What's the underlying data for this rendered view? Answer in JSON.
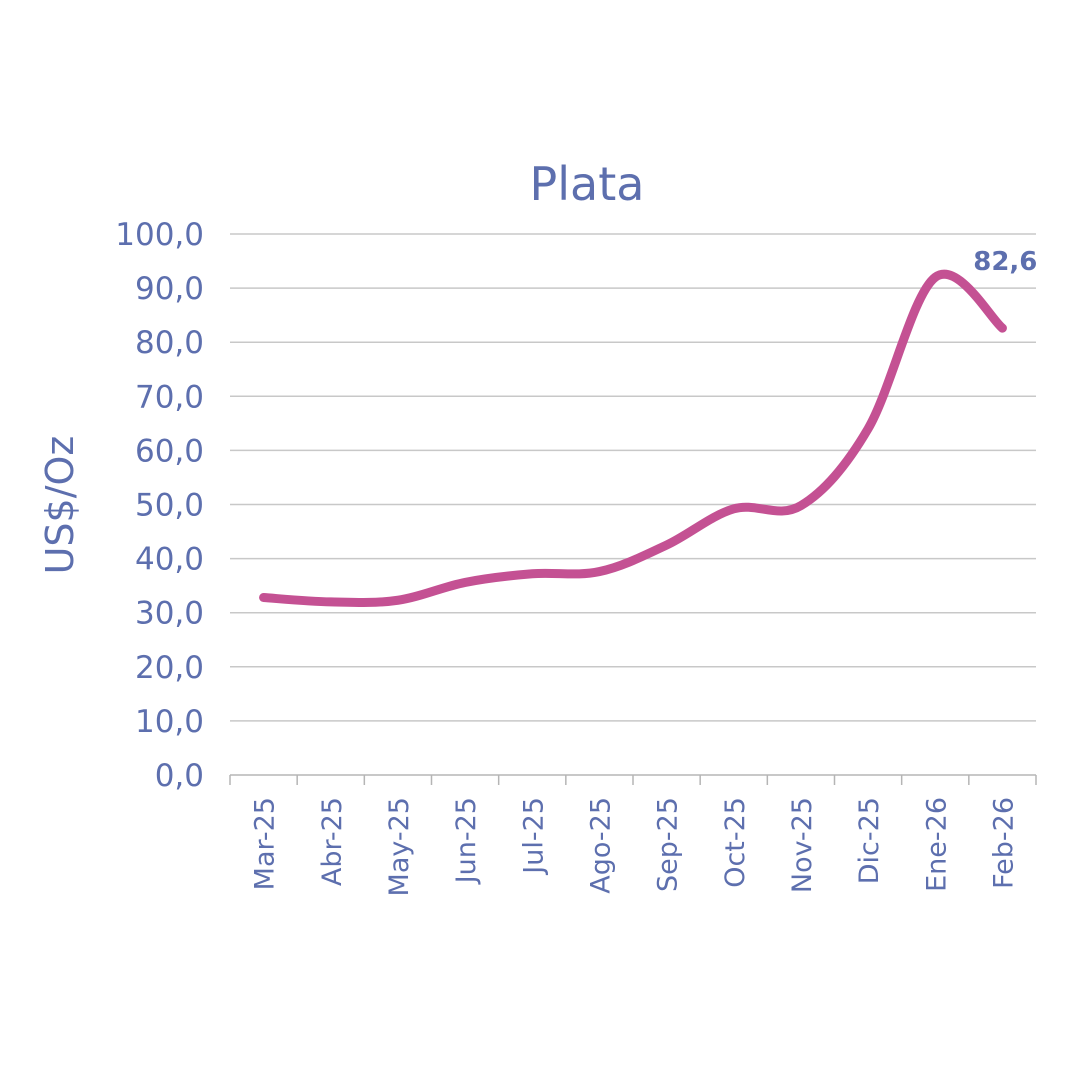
{
  "chart_data": {
    "type": "line",
    "title": "Plata",
    "xlabel": "",
    "ylabel": "US$/Oz",
    "categories": [
      "Mar-25",
      "Abr-25",
      "May-25",
      "Jun-25",
      "Jul-25",
      "Ago-25",
      "Sep-25",
      "Oct-25",
      "Nov-25",
      "Dic-25",
      "Ene-26",
      "Feb-26"
    ],
    "series": [
      {
        "values": [
          32.8,
          32.0,
          32.3,
          35.6,
          37.2,
          37.6,
          42.5,
          49.2,
          49.8,
          64.0,
          92.0,
          82.6
        ],
        "color": "#c45193"
      }
    ],
    "ylim": [
      0,
      100
    ],
    "yticks": [
      "0,0",
      "10,0",
      "20,0",
      "30,0",
      "40,0",
      "50,0",
      "60,0",
      "70,0",
      "80,0",
      "90,0",
      "100,0"
    ],
    "grid": true,
    "legend": "none",
    "data_labels": [
      {
        "category": "Feb-26",
        "text": "82,6"
      }
    ]
  }
}
